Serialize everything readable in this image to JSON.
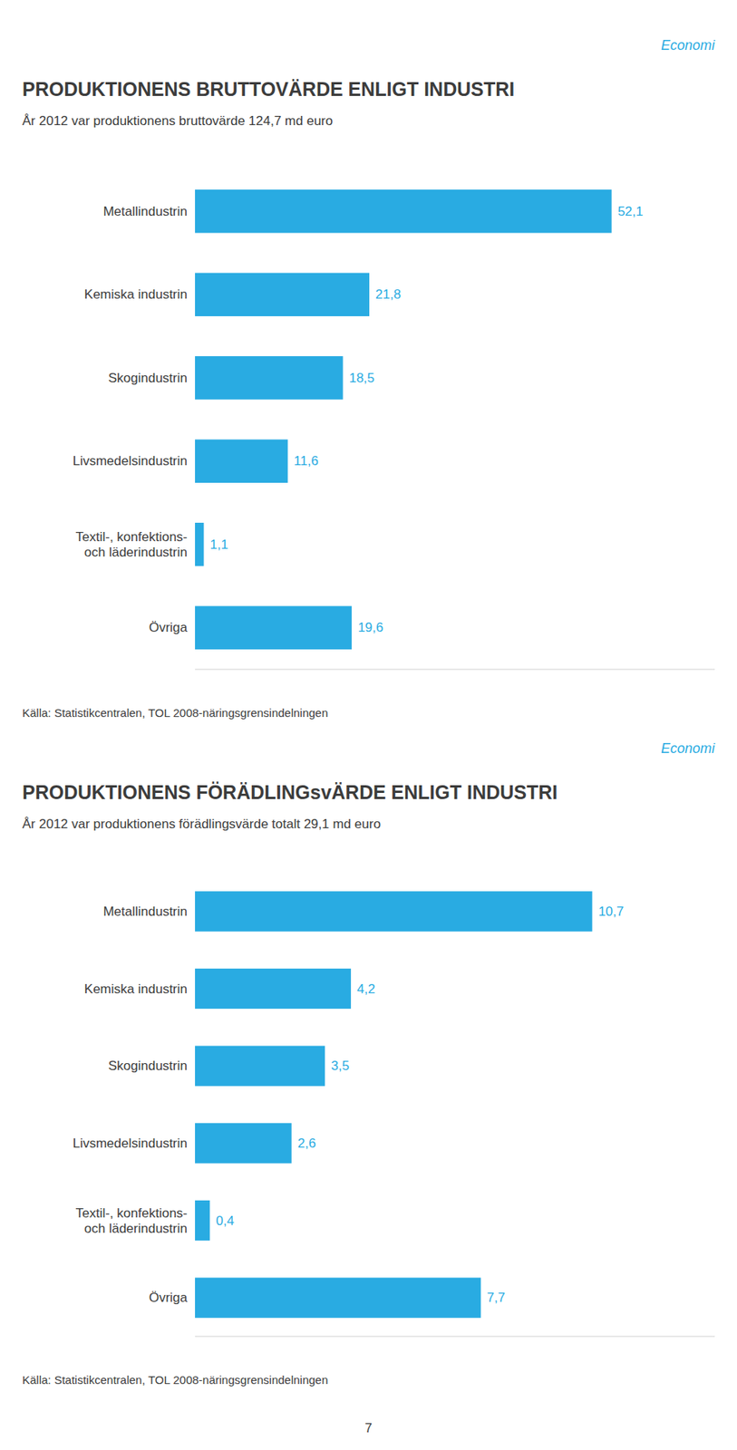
{
  "chart_data": [
    {
      "type": "bar",
      "orientation": "horizontal",
      "title": "PRODUKTIONENS BRUTTOVÄRDE ENLIGT INDUSTRI",
      "subtitle": "År 2012 var produktionens bruttovärde 124,7 md euro",
      "annotations": [
        "Economi"
      ],
      "source": "Källa: Statistikcentralen, TOL 2008-näringsgrensindelningen",
      "categories": [
        "Metallindustrin",
        "Kemiska industrin",
        "Skogindustrin",
        "Livsmedelsindustrin",
        "Textil-, konfektions-\noch läderindustrin",
        "Övriga"
      ],
      "values": [
        52.1,
        21.8,
        18.5,
        11.6,
        1.1,
        19.6
      ],
      "value_labels": [
        "52,1",
        "21,8",
        "18,5",
        "11,6",
        "1,1",
        "19,6"
      ],
      "color": "#29ABE2",
      "xlim": [
        0,
        65
      ],
      "data_labels": true,
      "tick_labels": false,
      "grid": false
    },
    {
      "type": "bar",
      "orientation": "horizontal",
      "title": "PRODUKTIONENS FÖRÄDLINGsvÄRDE ENLIGT INDUSTRI",
      "subtitle": "År 2012 var produktionens förädlingsvärde totalt 29,1 md euro",
      "annotations": [
        "Economi"
      ],
      "source": "Källa: Statistikcentralen, TOL 2008-näringsgrensindelningen",
      "categories": [
        "Metallindustrin",
        "Kemiska industrin",
        "Skogindustrin",
        "Livsmedelsindustrin",
        "Textil-, konfektions-\noch läderindustrin",
        "Övriga"
      ],
      "values": [
        10.7,
        4.2,
        3.5,
        2.6,
        0.4,
        7.7
      ],
      "value_labels": [
        "10,7",
        "4,2",
        "3,5",
        "2,6",
        "0,4",
        "7,7"
      ],
      "color": "#29ABE2",
      "xlim": [
        0,
        14
      ],
      "data_labels": true,
      "tick_labels": false,
      "grid": false
    }
  ],
  "page_number": "7"
}
